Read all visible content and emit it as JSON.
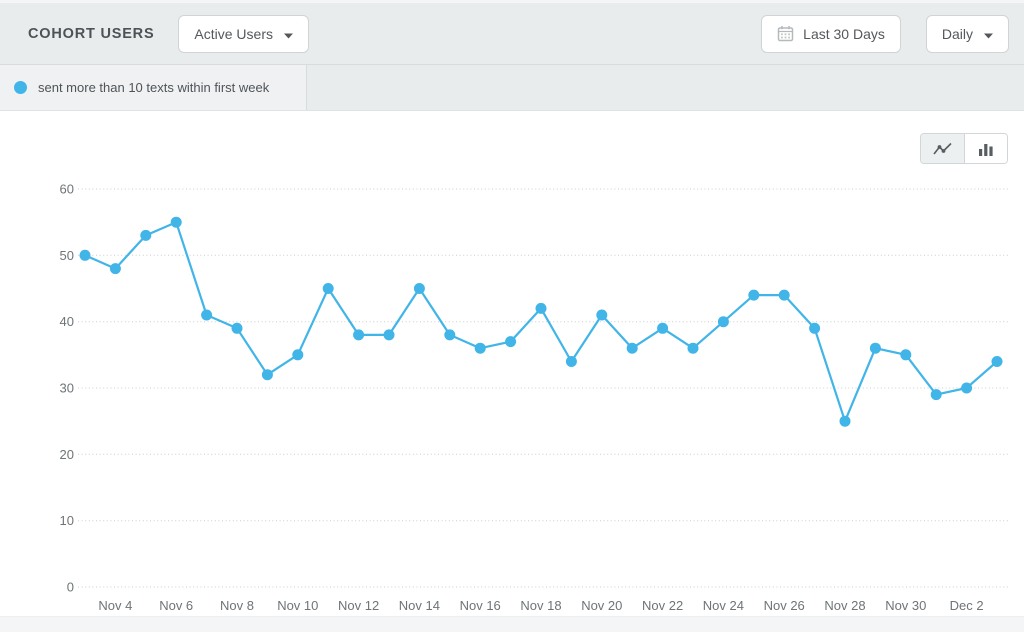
{
  "header": {
    "title": "COHORT USERS",
    "metric_dropdown": {
      "value": "Active Users"
    },
    "date_range_button": {
      "label": "Last 30 Days"
    },
    "granularity_dropdown": {
      "value": "Daily"
    }
  },
  "legend": {
    "series_label": "sent more than 10 texts within first week",
    "dot_color": "#41b4e8"
  },
  "chart_toggle": {
    "options": [
      "line",
      "bar"
    ],
    "active": "line"
  },
  "chart_data": {
    "type": "line",
    "title": "",
    "x": [
      "Nov 3",
      "Nov 4",
      "Nov 5",
      "Nov 6",
      "Nov 7",
      "Nov 8",
      "Nov 9",
      "Nov 10",
      "Nov 11",
      "Nov 12",
      "Nov 13",
      "Nov 14",
      "Nov 15",
      "Nov 16",
      "Nov 17",
      "Nov 18",
      "Nov 19",
      "Nov 20",
      "Nov 21",
      "Nov 22",
      "Nov 23",
      "Nov 24",
      "Nov 25",
      "Nov 26",
      "Nov 27",
      "Nov 28",
      "Nov 29",
      "Nov 30",
      "Dec 1",
      "Dec 2",
      "Dec 3"
    ],
    "series": [
      {
        "name": "sent more than 10 texts within first week",
        "color": "#41b4e8",
        "values": [
          50,
          48,
          53,
          55,
          41,
          39,
          32,
          35,
          45,
          38,
          38,
          45,
          38,
          36,
          37,
          42,
          34,
          41,
          36,
          39,
          36,
          40,
          44,
          44,
          39,
          25,
          36,
          35,
          29,
          30,
          34
        ]
      }
    ],
    "xlabel": "",
    "ylabel": "",
    "ylim": [
      0,
      60
    ],
    "yticks": [
      0,
      10,
      20,
      30,
      40,
      50,
      60
    ],
    "x_tick_indices": [
      1,
      3,
      5,
      7,
      9,
      11,
      13,
      15,
      17,
      19,
      21,
      23,
      25,
      27,
      29
    ],
    "grid": "horizontal-dotted",
    "legend_position": "top-left",
    "marker": "circle"
  },
  "colors": {
    "accent_blue": "#41b4e8",
    "header_bg": "#e9eced",
    "axis_text": "#6e7477",
    "gridline": "#c9cdd0",
    "button_text": "#54585b",
    "icon_gray": "#b5b9bc",
    "icon_dark": "#585d61"
  }
}
